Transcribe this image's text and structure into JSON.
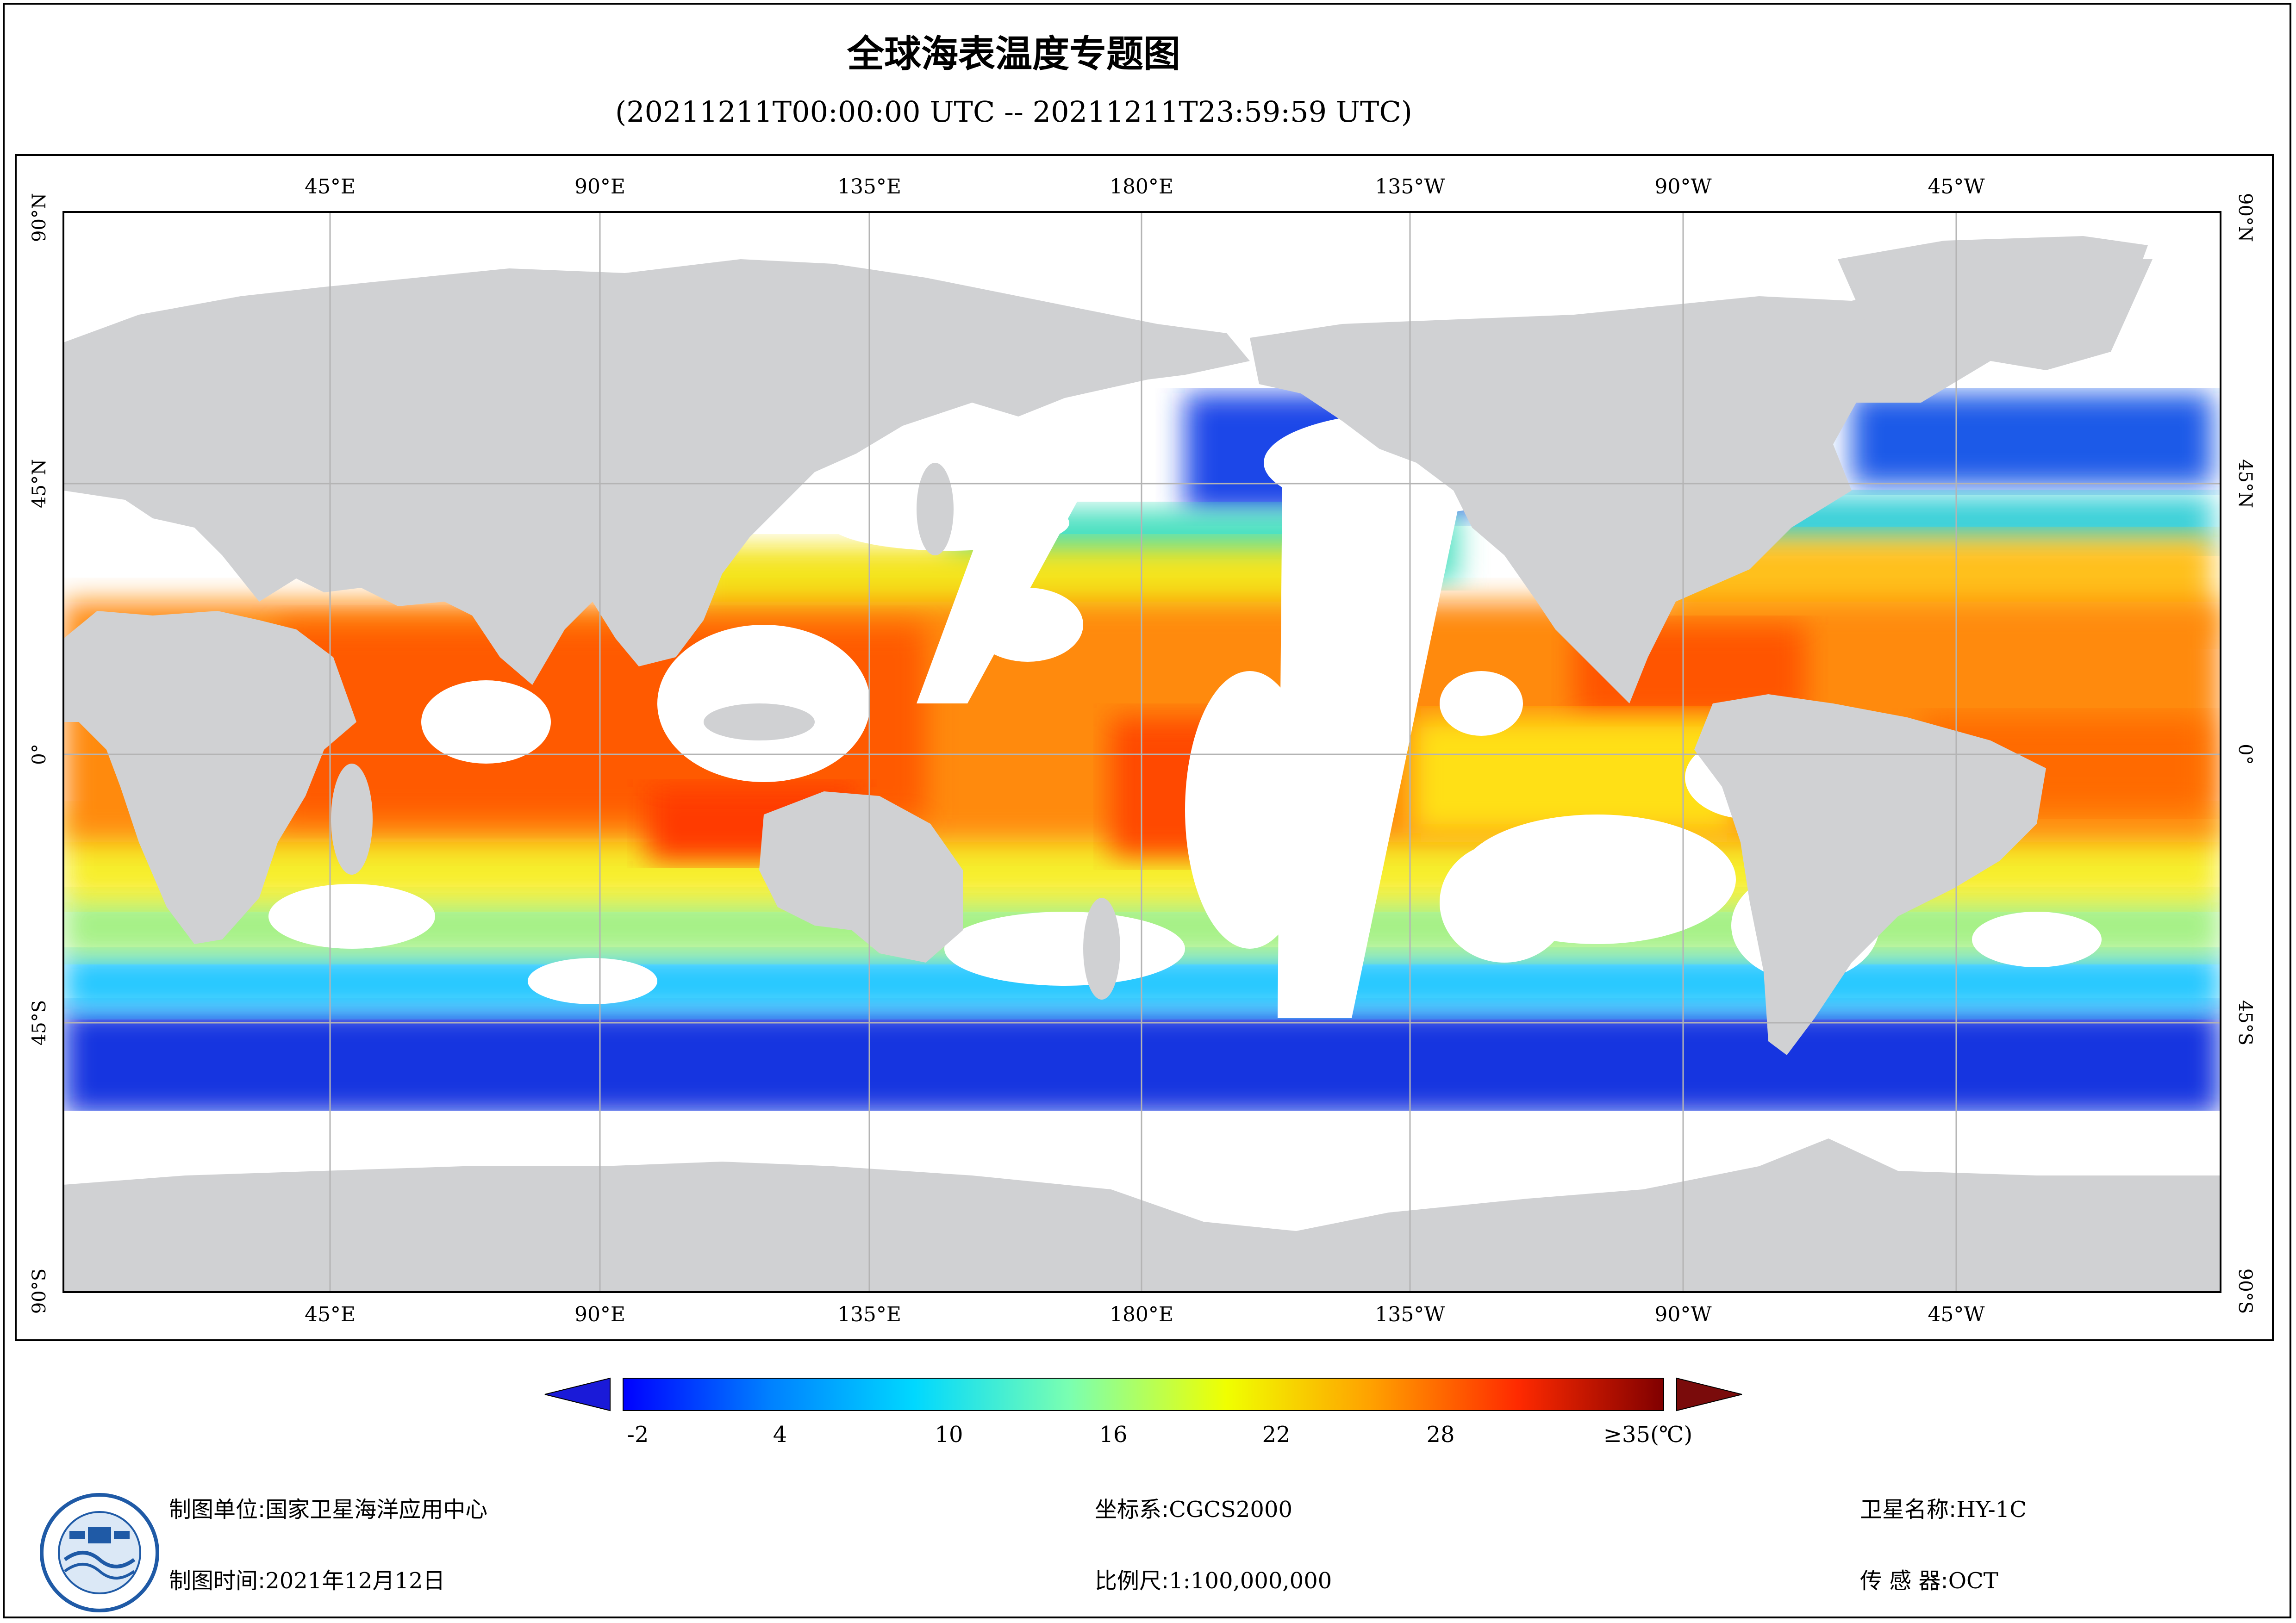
{
  "title": "全球海表温度专题图",
  "subtitle": "(20211211T00:00:00 UTC -- 20211211T23:59:59 UTC)",
  "map": {
    "top_longitude_labels": [
      "45°E",
      "90°E",
      "135°E",
      "180°E",
      "135°W",
      "90°W",
      "45°W"
    ],
    "bottom_longitude_labels": [
      "45°E",
      "90°E",
      "135°E",
      "180°E",
      "135°W",
      "90°W",
      "45°W"
    ],
    "latitude_labels": [
      "90°N",
      "45°N",
      "0°",
      "45°S",
      "90°S"
    ],
    "land_color": "#d0d1d3",
    "no_data_color": "#ffffff",
    "grid_color": "#b4b4b4"
  },
  "colorbar": {
    "ticks": [
      "-2",
      "4",
      "10",
      "16",
      "22",
      "28",
      "≥35(℃)"
    ],
    "under_color": "#1a1ad8",
    "over_color": "#7a0b0b",
    "colors": [
      "#0000ff",
      "#0080ff",
      "#00d8ff",
      "#7bffb0",
      "#f0ff00",
      "#ffa000",
      "#ff2a00",
      "#800000"
    ]
  },
  "footer": {
    "producer_label": "制图单位:",
    "producer_value": "国家卫星海洋应用中心",
    "time_label": "制图时间:",
    "time_value": "2021年12月12日",
    "crs_label": "坐标系:",
    "crs_value": "CGCS2000",
    "scale_label": "比例尺:",
    "scale_value": "1:100,000,000",
    "satellite_label": "卫星名称:",
    "satellite_value": "HY-1C",
    "sensor_label": "传 感 器:",
    "sensor_value": "OCT"
  },
  "logo": {
    "icon": "nsoas-logo-icon"
  }
}
